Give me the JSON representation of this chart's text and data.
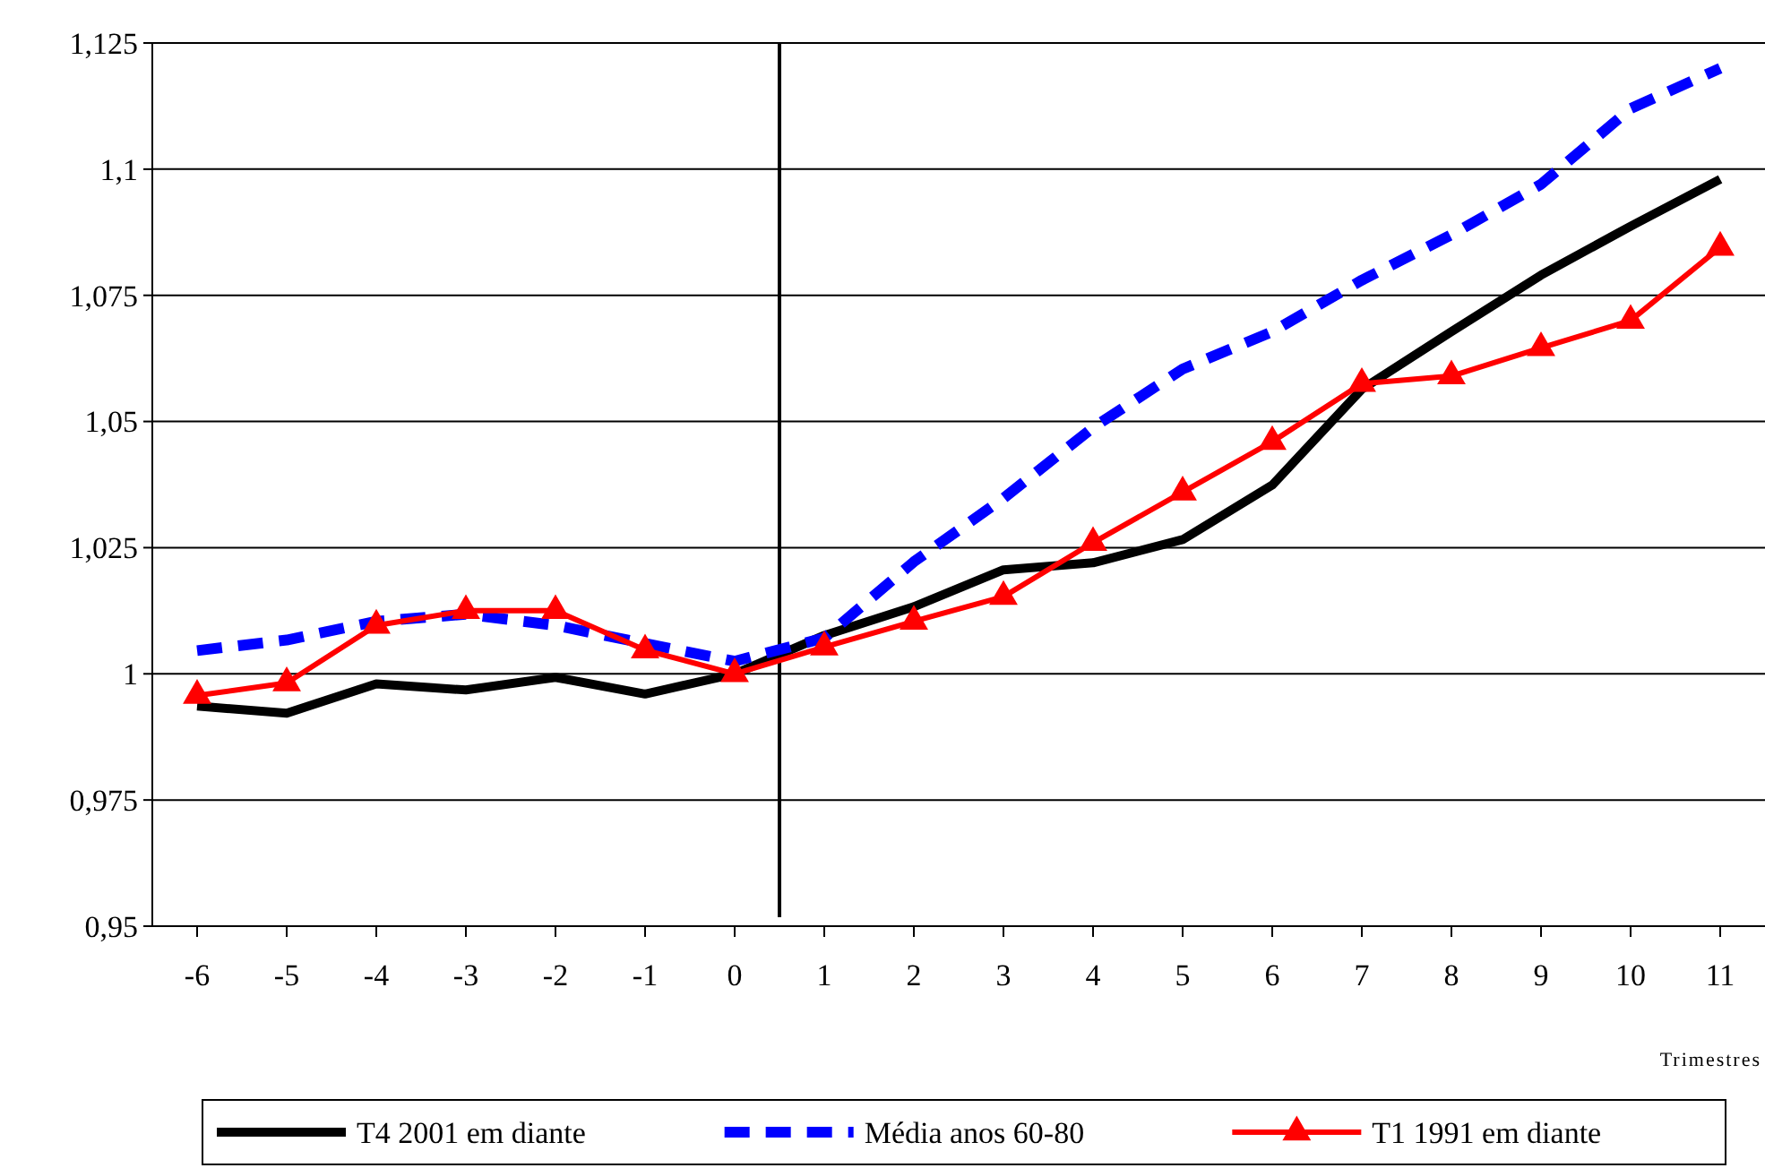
{
  "chart_data": {
    "type": "line",
    "xlabel": "Trimestres",
    "x": [
      -6,
      -5,
      -4,
      -3,
      -2,
      -1,
      0,
      1,
      2,
      3,
      4,
      5,
      6,
      7,
      8,
      9,
      10,
      11
    ],
    "xlim": [
      -6.5,
      11.5
    ],
    "xticks": [
      -6,
      -5,
      -4,
      -3,
      -2,
      -1,
      0,
      1,
      2,
      3,
      4,
      5,
      6,
      7,
      8,
      9,
      10,
      11
    ],
    "ylim": [
      0.95,
      1.125
    ],
    "yticks": [
      {
        "value": 0.95,
        "label": "0,95"
      },
      {
        "value": 0.975,
        "label": "0,975"
      },
      {
        "value": 1,
        "label": "1"
      },
      {
        "value": 1.025,
        "label": "1,025"
      },
      {
        "value": 1.05,
        "label": "1,05"
      },
      {
        "value": 1.075,
        "label": "1,075"
      },
      {
        "value": 1.1,
        "label": "1,1"
      },
      {
        "value": 1.125,
        "label": "1,125"
      }
    ],
    "grid": "y",
    "legend": "bottom",
    "ref_lines": [
      {
        "axis": "x",
        "value": 0.5,
        "color": "#000000"
      }
    ],
    "series": [
      {
        "name": "T4 2001 em diante",
        "color": "#000000",
        "line_style": "solid",
        "marker": "none",
        "values": [
          0.9936,
          0.9922,
          0.998,
          0.9968,
          0.9993,
          0.996,
          1.0,
          1.0076,
          1.0133,
          1.0206,
          1.022,
          1.0266,
          1.0374,
          1.0564,
          1.0678,
          1.079,
          1.0887,
          1.098
        ]
      },
      {
        "name": "Média anos 60-80",
        "color": "#0000ff",
        "line_style": "dashed",
        "marker": "none",
        "values": [
          1.0046,
          1.0067,
          1.0104,
          1.0118,
          1.0096,
          1.006,
          1.0025,
          1.0071,
          1.0222,
          1.0348,
          1.0488,
          1.0604,
          1.0678,
          1.078,
          1.087,
          1.097,
          1.112,
          1.12
        ]
      },
      {
        "name": "T1 1991 em diante",
        "color": "#ff0000",
        "line_style": "solid",
        "marker": "triangle",
        "values": [
          0.9957,
          0.9982,
          1.0096,
          1.0125,
          1.0125,
          1.0047,
          1.0,
          1.0053,
          1.0104,
          1.0153,
          1.026,
          1.036,
          1.046,
          1.0575,
          1.059,
          1.0646,
          1.07,
          1.0845
        ]
      }
    ]
  }
}
